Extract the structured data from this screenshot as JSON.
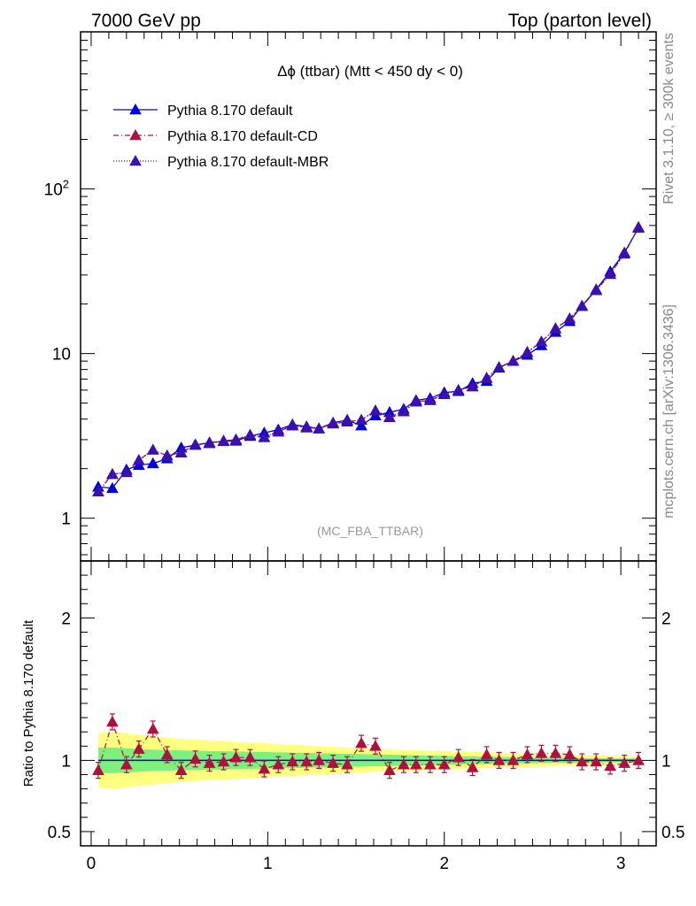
{
  "header": {
    "left": "7000 GeV pp",
    "right": "Top (parton level)"
  },
  "side_labels": {
    "rivet": "Rivet 3.1.10, ≥ 300k events",
    "mcplots": "mcplots.cern.ch [arXiv:1306.3436]"
  },
  "analysis_label": "(MC_FBA_TTBAR)",
  "colors": {
    "default": "#0000dd",
    "cd": "#b01040",
    "mbr": "#3a10b0",
    "band_inner": "#7ef07e",
    "band_outer": "#ffff80"
  },
  "chart_data": [
    {
      "type": "line",
      "title": "Δϕ (ttbar) (Mtt < 450 dy < 0)",
      "xlabel": "",
      "ylabel": "",
      "yscale": "log",
      "xlim": [
        -0.06,
        3.2
      ],
      "ylim": [
        0.55,
        900
      ],
      "yticks": [
        1,
        10,
        100
      ],
      "ytick_labels": [
        "1",
        "10",
        "10^2"
      ],
      "legend_position": "top-left",
      "x": [
        0.04,
        0.12,
        0.2,
        0.27,
        0.35,
        0.43,
        0.51,
        0.59,
        0.67,
        0.75,
        0.82,
        0.9,
        0.98,
        1.06,
        1.14,
        1.22,
        1.29,
        1.37,
        1.45,
        1.53,
        1.61,
        1.69,
        1.77,
        1.84,
        1.92,
        2.0,
        2.08,
        2.16,
        2.24,
        2.31,
        2.39,
        2.47,
        2.55,
        2.63,
        2.71,
        2.78,
        2.86,
        2.94,
        3.02,
        3.1
      ],
      "series": [
        {
          "name": "Pythia 8.170 default",
          "style": "solid",
          "values": [
            1.55,
            1.52,
            1.97,
            2.1,
            2.15,
            2.3,
            2.68,
            2.78,
            2.88,
            2.93,
            2.95,
            3.15,
            3.3,
            3.45,
            3.7,
            3.6,
            3.5,
            3.8,
            3.95,
            3.65,
            4.2,
            4.4,
            4.6,
            5.2,
            5.35,
            5.8,
            5.9,
            6.6,
            6.8,
            8.2,
            9.0,
            9.8,
            11.2,
            13.5,
            15.7,
            19.5,
            24.5,
            31.5,
            41,
            58
          ]
        },
        {
          "name": "Pythia 8.170 default-CD",
          "style": "dashdot",
          "values": [
            1.45,
            1.85,
            1.9,
            2.25,
            2.6,
            2.4,
            2.5,
            2.8,
            2.85,
            2.95,
            3.0,
            3.2,
            3.1,
            3.35,
            3.65,
            3.55,
            3.5,
            3.75,
            3.85,
            3.95,
            4.5,
            4.1,
            4.45,
            5.1,
            5.2,
            5.65,
            6.0,
            6.3,
            7.1,
            8.25,
            9.0,
            10.2,
            11.8,
            14.2,
            16.3,
            19.4,
            24.2,
            30.4,
            40.4,
            58.5
          ]
        },
        {
          "name": "Pythia 8.170 default-MBR",
          "style": "dotted",
          "values": [
            1.45,
            1.85,
            1.9,
            2.25,
            2.6,
            2.4,
            2.5,
            2.8,
            2.85,
            2.95,
            3.0,
            3.2,
            3.1,
            3.35,
            3.65,
            3.55,
            3.5,
            3.75,
            3.85,
            3.95,
            4.5,
            4.1,
            4.45,
            5.1,
            5.2,
            5.65,
            6.0,
            6.3,
            7.1,
            8.25,
            9.0,
            10.2,
            11.8,
            14.2,
            16.3,
            19.4,
            24.2,
            30.4,
            40.4,
            58.5
          ]
        }
      ]
    },
    {
      "type": "line",
      "title": "",
      "xlabel": "",
      "ylabel": "Ratio to Pythia 8.170 default",
      "xlim": [
        -0.06,
        3.2
      ],
      "ylim": [
        0.4,
        2.4
      ],
      "xticks": [
        0,
        1,
        2,
        3
      ],
      "yticks": [
        0.5,
        1,
        2
      ],
      "reference": 1.0,
      "x": [
        0.04,
        0.12,
        0.2,
        0.27,
        0.35,
        0.43,
        0.51,
        0.59,
        0.67,
        0.75,
        0.82,
        0.9,
        0.98,
        1.06,
        1.14,
        1.22,
        1.29,
        1.37,
        1.45,
        1.53,
        1.61,
        1.69,
        1.77,
        1.84,
        1.92,
        2.0,
        2.08,
        2.16,
        2.24,
        2.31,
        2.39,
        2.47,
        2.55,
        2.63,
        2.71,
        2.78,
        2.86,
        2.94,
        3.02,
        3.1
      ],
      "band_inner_halfwidth": [
        0.09,
        0.09,
        0.085,
        0.08,
        0.075,
        0.072,
        0.07,
        0.068,
        0.066,
        0.064,
        0.062,
        0.06,
        0.058,
        0.056,
        0.054,
        0.052,
        0.05,
        0.048,
        0.046,
        0.044,
        0.042,
        0.04,
        0.038,
        0.036,
        0.034,
        0.032,
        0.03,
        0.028,
        0.026,
        0.024,
        0.022,
        0.02,
        0.019,
        0.018,
        0.017,
        0.016,
        0.015,
        0.014,
        0.013,
        0.012
      ],
      "band_outer_halfwidth": [
        0.19,
        0.2,
        0.19,
        0.18,
        0.17,
        0.16,
        0.15,
        0.145,
        0.14,
        0.135,
        0.13,
        0.125,
        0.12,
        0.115,
        0.11,
        0.105,
        0.1,
        0.095,
        0.09,
        0.085,
        0.08,
        0.077,
        0.074,
        0.071,
        0.068,
        0.065,
        0.062,
        0.059,
        0.056,
        0.053,
        0.05,
        0.047,
        0.044,
        0.041,
        0.038,
        0.036,
        0.034,
        0.032,
        0.03,
        0.028
      ],
      "series": [
        {
          "name": "Pythia 8.170 default-CD",
          "style": "dashdot",
          "values": [
            0.93,
            1.27,
            0.97,
            1.08,
            1.22,
            1.04,
            0.93,
            1.01,
            0.98,
            0.99,
            1.02,
            1.02,
            0.94,
            0.97,
            0.99,
            0.99,
            1.0,
            0.98,
            0.97,
            1.12,
            1.1,
            0.93,
            0.97,
            0.97,
            0.97,
            0.97,
            1.02,
            0.95,
            1.04,
            1.0,
            1.0,
            1.04,
            1.05,
            1.05,
            1.04,
            0.99,
            0.99,
            0.96,
            0.98,
            1.0
          ]
        }
      ]
    }
  ]
}
